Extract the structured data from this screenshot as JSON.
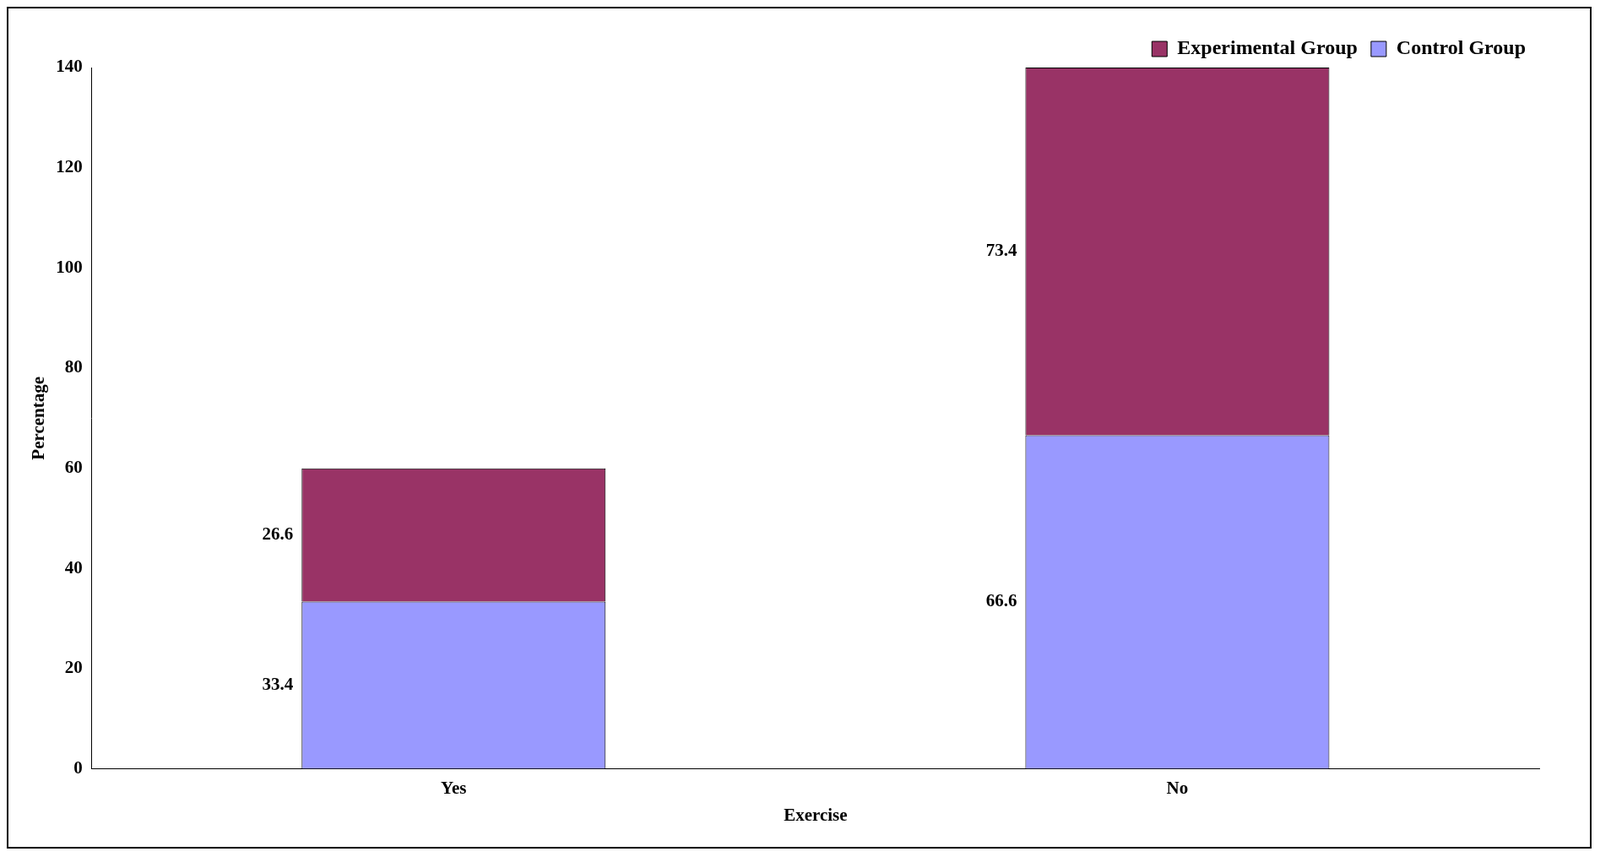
{
  "chart_data": {
    "type": "bar",
    "stacked": true,
    "x_label": "Exercise",
    "y_label": "Percentage",
    "categories": [
      "Yes",
      "No"
    ],
    "series": [
      {
        "name": "Control Group",
        "color": "#9999ff",
        "values": [
          33.4,
          66.6
        ]
      },
      {
        "name": "Experimental Group",
        "color": "#993366",
        "values": [
          26.6,
          73.4
        ]
      }
    ],
    "ylim": [
      0,
      140
    ],
    "yticks": [
      0,
      20,
      40,
      60,
      80,
      100,
      120,
      140
    ],
    "grid": false,
    "legend": "top-right",
    "data_labels": true
  }
}
